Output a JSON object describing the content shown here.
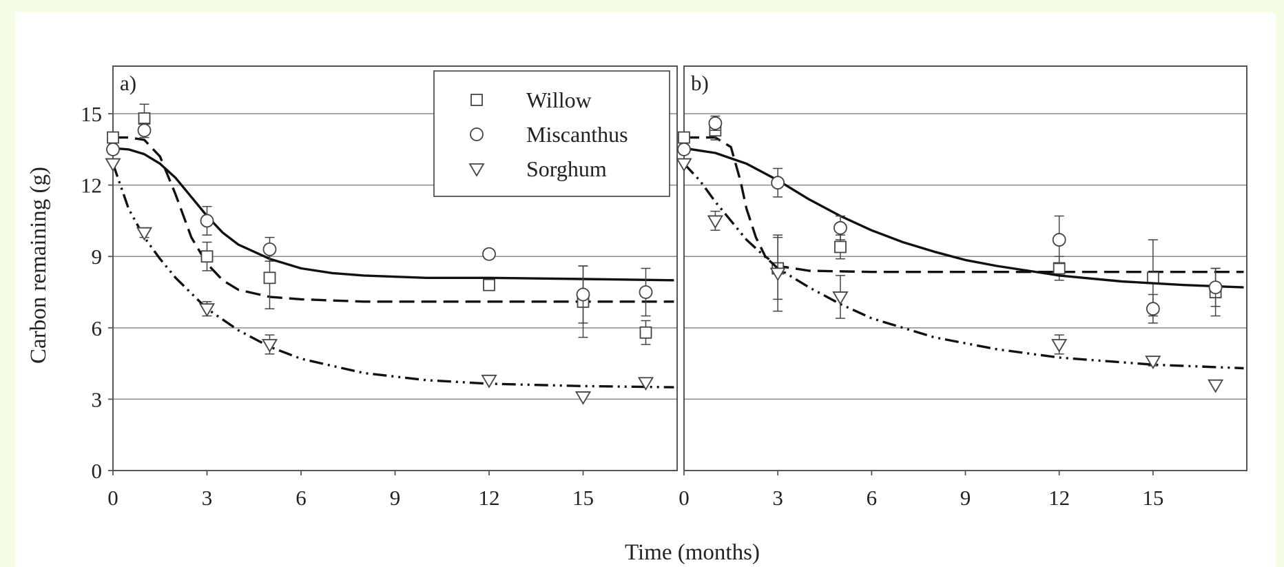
{
  "figure": {
    "ylabel": "Carbon remaining (g)",
    "xlabel": "Time (months)",
    "background": "#ffffff",
    "frame_color": "#555555",
    "grid_color": "#8a8a8a",
    "page_background": "#f3fde4"
  },
  "legend": {
    "entries": [
      {
        "label": "Willow",
        "marker": "square"
      },
      {
        "label": "Miscanthus",
        "marker": "circle"
      },
      {
        "label": "Sorghum",
        "marker": "triangle-down"
      }
    ],
    "placement": "top-right of panel a"
  },
  "chart_data": [
    {
      "type": "scatter",
      "panel_label": "a)",
      "xlim": [
        0,
        18
      ],
      "ylim": [
        0,
        17
      ],
      "xticks": [
        0,
        3,
        6,
        9,
        12,
        15
      ],
      "yticks": [
        0,
        3,
        6,
        9,
        12,
        15
      ],
      "grid": "horizontal",
      "series": [
        {
          "name": "Willow",
          "marker": "square",
          "line_style": "dashed",
          "x": [
            0,
            1,
            3,
            5,
            12,
            15,
            17
          ],
          "y": [
            14.0,
            14.8,
            9.0,
            8.1,
            7.8,
            7.1,
            5.8
          ],
          "err": [
            0.2,
            0.6,
            0.6,
            1.3,
            0.2,
            1.5,
            0.5
          ],
          "fit_x": [
            0,
            0.5,
            1,
            1.5,
            2,
            2.5,
            3,
            3.5,
            4,
            5,
            6,
            8,
            10,
            12,
            15,
            17.9
          ],
          "fit_y": [
            14.0,
            14.0,
            13.9,
            13.2,
            11.6,
            9.8,
            8.7,
            8.0,
            7.6,
            7.3,
            7.2,
            7.1,
            7.1,
            7.1,
            7.1,
            7.1
          ]
        },
        {
          "name": "Miscanthus",
          "marker": "circle",
          "line_style": "solid",
          "x": [
            0,
            1,
            3,
            5,
            12,
            15,
            17
          ],
          "y": [
            13.5,
            14.3,
            10.5,
            9.3,
            9.1,
            7.4,
            7.5
          ],
          "err": [
            0.2,
            0.3,
            0.6,
            0.5,
            0.2,
            1.2,
            1.0
          ],
          "fit_x": [
            0,
            0.5,
            1,
            1.5,
            2,
            2.5,
            3,
            3.5,
            4,
            5,
            6,
            7,
            8,
            10,
            12,
            15,
            17.9
          ],
          "fit_y": [
            13.55,
            13.5,
            13.3,
            12.9,
            12.3,
            11.5,
            10.7,
            10.0,
            9.5,
            8.9,
            8.5,
            8.3,
            8.2,
            8.1,
            8.1,
            8.05,
            8.0
          ]
        },
        {
          "name": "Sorghum",
          "marker": "triangle-down",
          "line_style": "dash-dot-dot",
          "x": [
            0,
            1,
            3,
            5,
            12,
            15,
            17
          ],
          "y": [
            12.9,
            10.0,
            6.8,
            5.3,
            3.8,
            3.1,
            3.7
          ],
          "err": [
            0.1,
            0.2,
            0.3,
            0.4,
            0.1,
            0.1,
            0.1
          ],
          "fit_x": [
            0,
            0.5,
            1,
            1.5,
            2,
            3,
            4,
            5,
            6,
            8,
            10,
            12,
            15,
            17.9
          ],
          "fit_y": [
            12.9,
            11.0,
            9.8,
            8.9,
            8.1,
            6.8,
            5.9,
            5.2,
            4.7,
            4.1,
            3.8,
            3.65,
            3.55,
            3.5
          ]
        }
      ]
    },
    {
      "type": "scatter",
      "panel_label": "b)",
      "xlim": [
        0,
        18
      ],
      "ylim": [
        0,
        17
      ],
      "xticks": [
        0,
        3,
        6,
        9,
        12,
        15
      ],
      "yticks": [
        0,
        3,
        6,
        9,
        12,
        15
      ],
      "grid": "horizontal",
      "series": [
        {
          "name": "Willow",
          "marker": "square",
          "line_style": "dashed",
          "x": [
            0,
            1,
            3,
            5,
            12,
            15,
            17
          ],
          "y": [
            14.0,
            14.3,
            8.5,
            9.4,
            8.5,
            8.1,
            7.5
          ],
          "err": [
            0.2,
            0.4,
            1.3,
            0.5,
            0.5,
            1.6,
            1.0
          ],
          "fit_x": [
            0,
            1,
            1.5,
            1.8,
            2,
            2.3,
            2.6,
            3,
            4,
            6,
            10,
            14,
            17.9
          ],
          "fit_y": [
            14.0,
            14.0,
            13.6,
            12.2,
            11.0,
            9.8,
            9.0,
            8.6,
            8.4,
            8.35,
            8.35,
            8.35,
            8.35
          ]
        },
        {
          "name": "Miscanthus",
          "marker": "circle",
          "line_style": "solid",
          "x": [
            0,
            1,
            3,
            5,
            12,
            15,
            17
          ],
          "y": [
            13.5,
            14.6,
            12.1,
            10.2,
            9.7,
            6.8,
            7.7
          ],
          "err": [
            0.2,
            0.3,
            0.6,
            0.5,
            1.0,
            0.6,
            0.8
          ],
          "fit_x": [
            0,
            1,
            2,
            3,
            4,
            5,
            6,
            7,
            8,
            9,
            10,
            12,
            14,
            16,
            17.9
          ],
          "fit_y": [
            13.55,
            13.35,
            12.9,
            12.2,
            11.4,
            10.7,
            10.1,
            9.6,
            9.2,
            8.85,
            8.6,
            8.2,
            7.95,
            7.8,
            7.7
          ]
        },
        {
          "name": "Sorghum",
          "marker": "triangle-down",
          "line_style": "dash-dot-dot",
          "x": [
            0,
            1,
            3,
            5,
            12,
            15,
            17
          ],
          "y": [
            12.9,
            10.5,
            8.3,
            7.3,
            5.3,
            4.6,
            3.6
          ],
          "err": [
            0.1,
            0.4,
            1.6,
            0.9,
            0.4,
            0.2,
            0.1
          ],
          "fit_x": [
            0,
            0.5,
            1,
            2,
            3,
            4,
            5,
            6,
            8,
            10,
            12,
            15,
            17.9
          ],
          "fit_y": [
            12.9,
            12.2,
            11.3,
            9.7,
            8.5,
            7.7,
            7.0,
            6.4,
            5.6,
            5.1,
            4.75,
            4.45,
            4.3
          ]
        }
      ]
    }
  ]
}
